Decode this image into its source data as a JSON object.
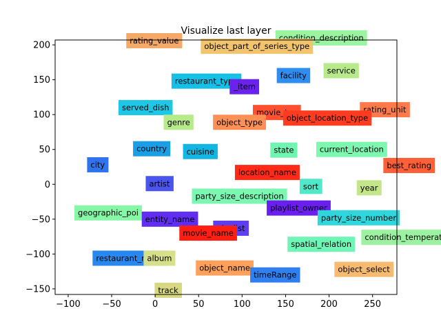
{
  "chart_data": {
    "type": "scatter",
    "title": "Visualize last layer",
    "xlabel": "",
    "ylabel": "",
    "xlim": [
      -115,
      278
    ],
    "ylim": [
      -158,
      207
    ],
    "xticks": [
      -100,
      -50,
      0,
      50,
      100,
      150,
      200,
      250
    ],
    "yticks": [
      -150,
      -100,
      -50,
      0,
      50,
      100,
      150,
      200
    ],
    "grid": false,
    "legend": "none",
    "points": [
      {
        "label": "rating_value",
        "x": -1,
        "y": 206,
        "color": "#f4a968"
      },
      {
        "label": "condition_description",
        "x": 191,
        "y": 210,
        "color": "#9af4a0"
      },
      {
        "label": "object_part_of_series_type",
        "x": 117,
        "y": 198,
        "color": "#f2c46e"
      },
      {
        "label": "facility",
        "x": 159,
        "y": 156,
        "color": "#2f8df0"
      },
      {
        "label": "service",
        "x": 214,
        "y": 163,
        "color": "#b8ea8c"
      },
      {
        "label": "restaurant_type",
        "x": 59,
        "y": 148,
        "color": "#16bfe6"
      },
      {
        "label": "_item",
        "x": 103,
        "y": 140,
        "color": "#6b22ee"
      },
      {
        "label": "served_dish",
        "x": -11,
        "y": 110,
        "color": "#1fc7e6"
      },
      {
        "label": "movie_typ",
        "x": 140,
        "y": 103,
        "color": "#ff5030"
      },
      {
        "label": "rating_unit",
        "x": 264,
        "y": 107,
        "color": "#ff7a4a"
      },
      {
        "label": "object_location_type",
        "x": 198,
        "y": 95,
        "color": "#ff3b20"
      },
      {
        "label": "genre",
        "x": 27,
        "y": 89,
        "color": "#b6ea8a"
      },
      {
        "label": "object_type",
        "x": 97,
        "y": 89,
        "color": "#ff9055"
      },
      {
        "label": "country",
        "x": -4,
        "y": 51,
        "color": "#1a9ee6"
      },
      {
        "label": "cuisine",
        "x": 52,
        "y": 47,
        "color": "#11b6e2"
      },
      {
        "label": "state",
        "x": 148,
        "y": 49,
        "color": "#6ff5b0"
      },
      {
        "label": "current_location",
        "x": 226,
        "y": 50,
        "color": "#7ef7b0"
      },
      {
        "label": "city",
        "x": -66,
        "y": 28,
        "color": "#2f74ee"
      },
      {
        "label": "best_rating",
        "x": 292,
        "y": 27,
        "color": "#ff6038"
      },
      {
        "label": "location_name",
        "x": 129,
        "y": 17,
        "color": "#ff2a18"
      },
      {
        "label": "artist",
        "x": 5,
        "y": 1,
        "color": "#4b55ee"
      },
      {
        "label": "sort",
        "x": 179,
        "y": -3,
        "color": "#4fe8c8"
      },
      {
        "label": "year",
        "x": 246,
        "y": -5,
        "color": "#c4e68a"
      },
      {
        "label": "party_size_description",
        "x": 97,
        "y": -17,
        "color": "#7cf7b2"
      },
      {
        "label": "playlist_owner",
        "x": 165,
        "y": -34,
        "color": "#6a1ef0"
      },
      {
        "label": "geographic_poi",
        "x": -54,
        "y": -41,
        "color": "#86f7a6"
      },
      {
        "label": "entity_name",
        "x": 17,
        "y": -50,
        "color": "#5f2ef0"
      },
      {
        "label": "party_size_number",
        "x": 234,
        "y": -48,
        "color": "#2fd6dc"
      },
      {
        "label": "playlist",
        "x": 87,
        "y": -63,
        "color": "#5d3ef0"
      },
      {
        "label": "movie_name",
        "x": 61,
        "y": -70,
        "color": "#ff1e12"
      },
      {
        "label": "condition_temperature",
        "x": 293,
        "y": -76,
        "color": "#9cf2a0"
      },
      {
        "label": "spatial_relation",
        "x": 191,
        "y": -86,
        "color": "#6ff5b6"
      },
      {
        "label": "restaurant_name",
        "x": -29,
        "y": -106,
        "color": "#2888f0"
      },
      {
        "label": "album",
        "x": 5,
        "y": -106,
        "color": "#d6e08a"
      },
      {
        "label": "object_name",
        "x": 80,
        "y": -120,
        "color": "#ffa05c"
      },
      {
        "label": "object_select",
        "x": 240,
        "y": -122,
        "color": "#f6ba70"
      },
      {
        "label": "timeRange",
        "x": 138,
        "y": -130,
        "color": "#2f7fee"
      },
      {
        "label": "track",
        "x": 15,
        "y": -152,
        "color": "#d6d884"
      }
    ]
  }
}
